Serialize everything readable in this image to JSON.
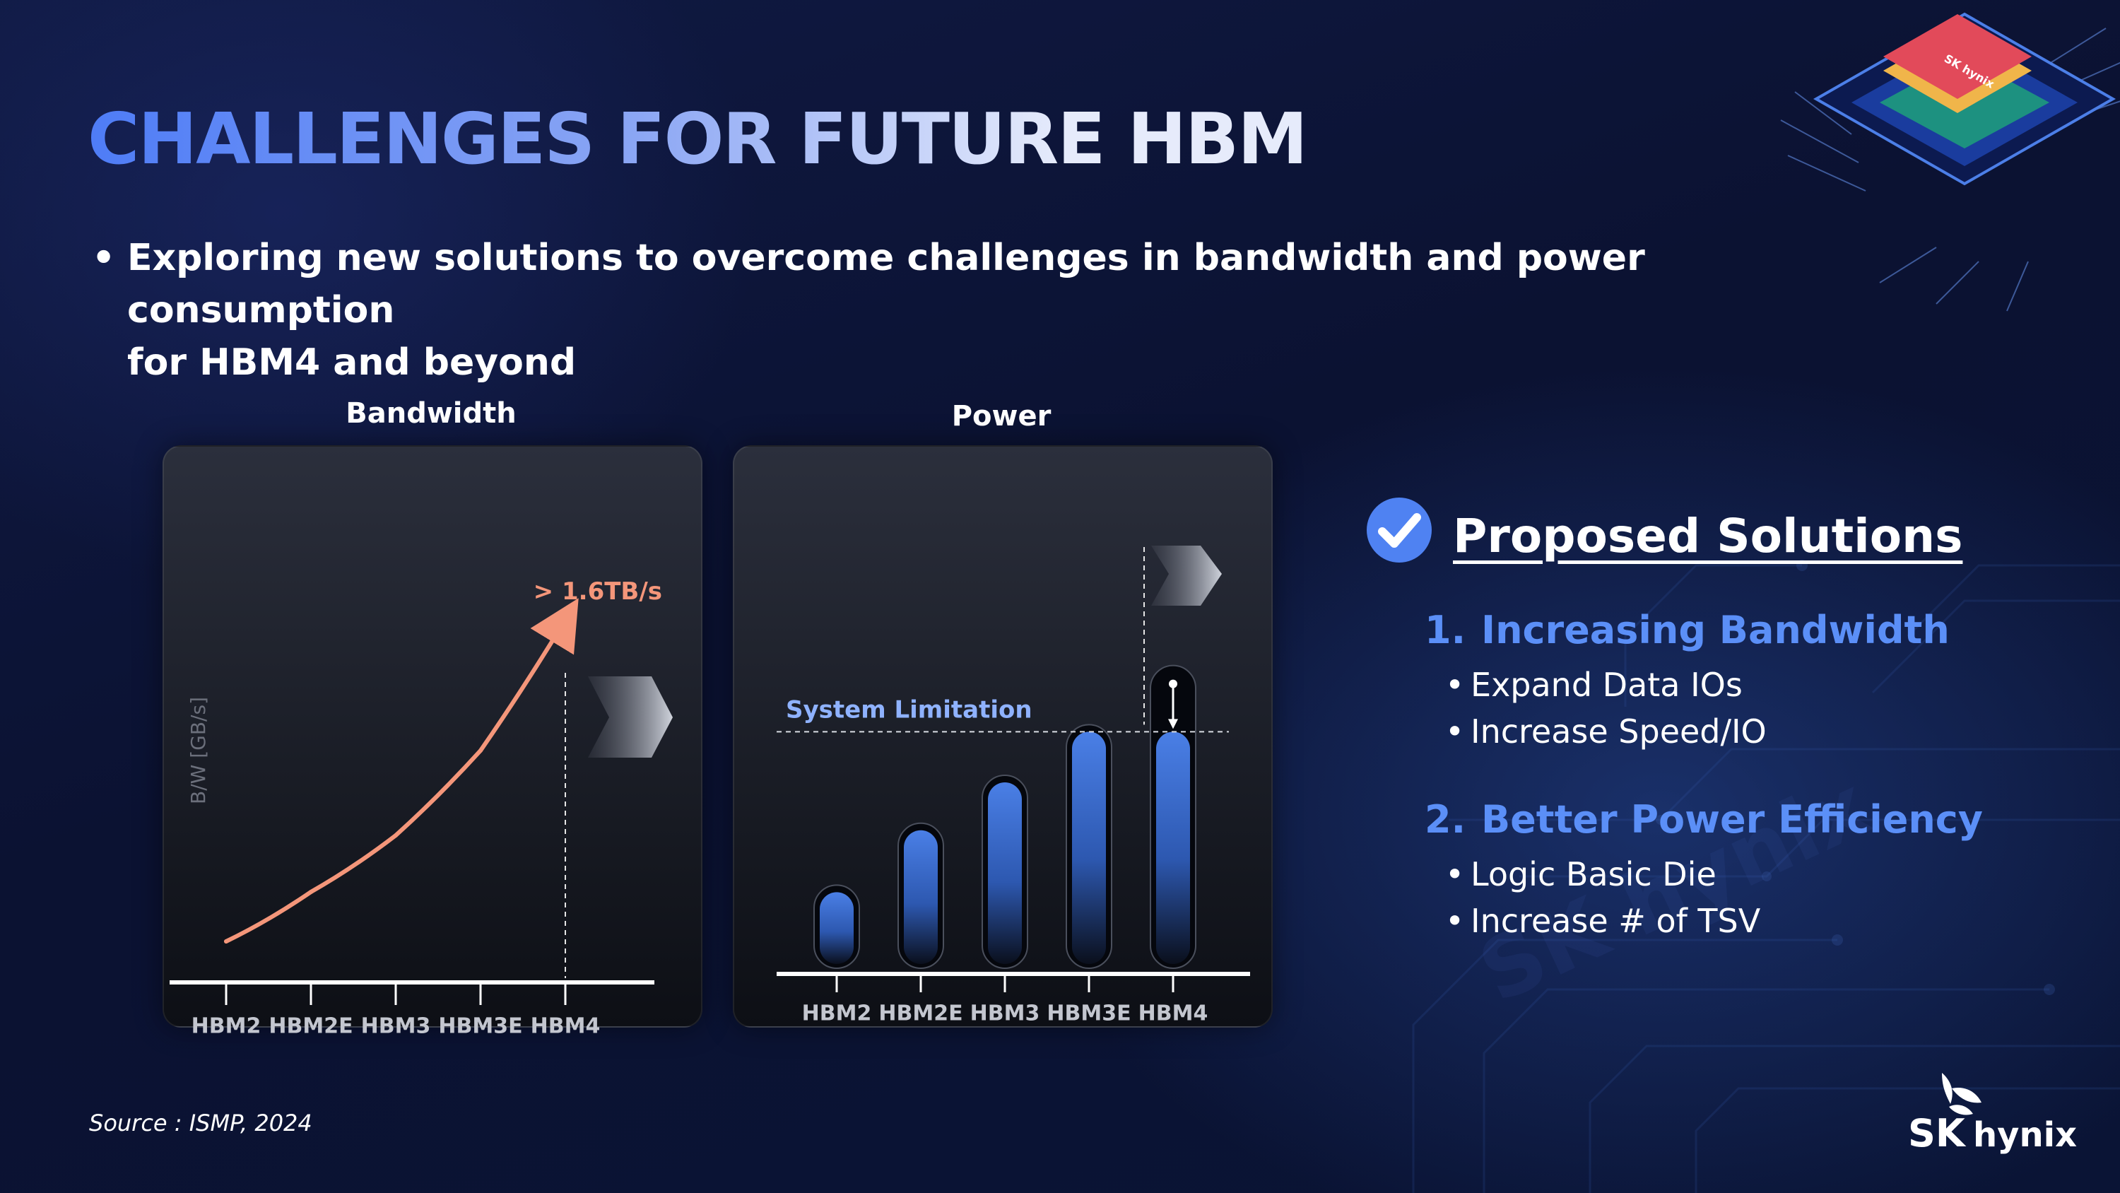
{
  "slide": {
    "title": "CHALLENGES FOR FUTURE HBM",
    "subtitle": {
      "bullet": "•",
      "line1": "Exploring new solutions to overcome challenges in bandwidth and power consumption",
      "line2": "for HBM4 and beyond"
    },
    "source": "Source : ISMP, 2024",
    "logo": {
      "primary": "SK",
      "secondary": "hynix",
      "icon": "sk-butterfly-logo"
    }
  },
  "solutions": {
    "icon": "check-circle-icon",
    "heading": "Proposed Solutions",
    "items": [
      {
        "number": "1.",
        "title": "Increasing Bandwidth",
        "bullets": [
          "Expand Data IOs",
          "Increase Speed/IO"
        ]
      },
      {
        "number": "2.",
        "title": "Better Power Efficiency",
        "bullets": [
          "Logic Basic Die",
          "Increase # of TSV"
        ]
      }
    ]
  },
  "colors": {
    "accent_blue": "#5b8ff7",
    "line_salmon": "#f4967a",
    "bar_blue": "#3f73d6",
    "limit_label": "#8fb2ff"
  },
  "chart_data": [
    {
      "type": "line",
      "title": "Bandwidth",
      "ylabel": "B/W [GB/s]",
      "categories": [
        "HBM2",
        "HBM2E",
        "HBM3",
        "HBM3E",
        "HBM4"
      ],
      "series": [
        {
          "values": [
            0.05,
            0.19,
            0.35,
            0.59,
            0.96
          ]
        }
      ],
      "annotation": "> 1.6TB/s",
      "ylim": [
        0,
        1
      ],
      "grid": false
    },
    {
      "type": "bar",
      "title": "Power",
      "categories": [
        "HBM2",
        "HBM2E",
        "HBM3",
        "HBM3E",
        "HBM4"
      ],
      "values": [
        0.27,
        0.49,
        0.66,
        0.84,
        1.05
      ],
      "reference_line": {
        "label": "System Limitation",
        "value": 0.84
      },
      "ylim": [
        0,
        1.25
      ],
      "grid": false
    }
  ]
}
